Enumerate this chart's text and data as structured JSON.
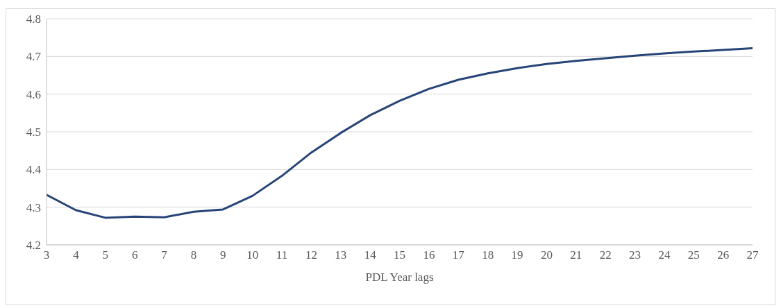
{
  "chart_data": {
    "type": "line",
    "xlabel": "PDL Year lags",
    "x": [
      3,
      4,
      5,
      6,
      7,
      8,
      9,
      10,
      11,
      12,
      13,
      14,
      15,
      16,
      17,
      18,
      19,
      20,
      21,
      22,
      23,
      24,
      25,
      26,
      27
    ],
    "series": [
      {
        "color": "#264478",
        "values": [
          4.333,
          4.292,
          4.272,
          4.275,
          4.273,
          4.288,
          4.294,
          4.33,
          4.383,
          4.445,
          4.497,
          4.544,
          4.582,
          4.614,
          4.638,
          4.655,
          4.669,
          4.68,
          4.688,
          4.695,
          4.702,
          4.708,
          4.713,
          4.717,
          4.722
        ]
      }
    ],
    "xlim": [
      3,
      27
    ],
    "xticks": [
      3,
      4,
      5,
      6,
      7,
      8,
      9,
      10,
      11,
      12,
      13,
      14,
      15,
      16,
      17,
      18,
      19,
      20,
      21,
      22,
      23,
      24,
      25,
      26,
      27
    ],
    "ylim": [
      4.2,
      4.8
    ],
    "yticks": [
      4.2,
      4.3,
      4.4,
      4.5,
      4.6,
      4.7,
      4.8
    ],
    "grid": "y",
    "legend": false,
    "marker": "none",
    "line_style": "solid"
  }
}
